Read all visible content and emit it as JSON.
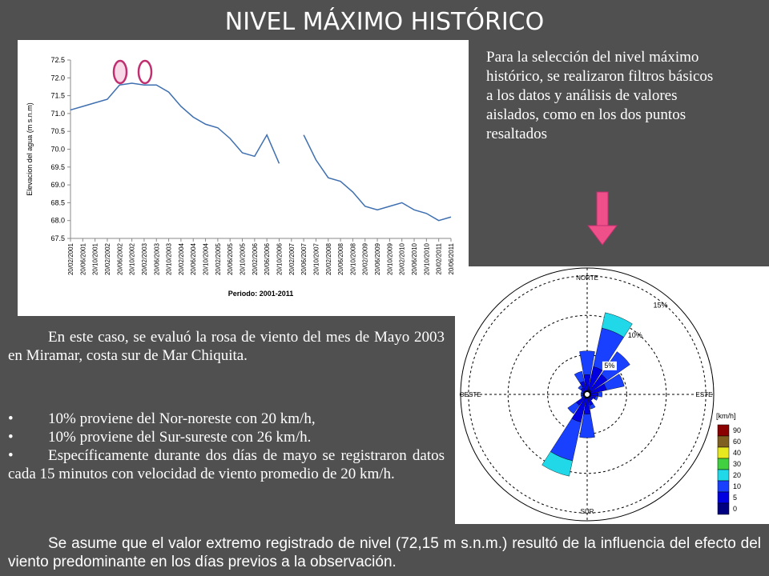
{
  "title": "NIVEL MÁXIMO HISTÓRICO",
  "note": "Para la selección del nivel máximo histórico, se realizaron filtros básicos a los datos y análisis de valores aislados, como en los dos puntos resaltados",
  "paragraph": "En este caso, se evaluó la rosa de viento del mes de Mayo 2003 en Miramar, costa sur de Mar Chiquita.",
  "bullets": [
    "10% proviene del Nor-noreste con 20 km/h,",
    "10% proviene del Sur-sureste con 26 km/h.",
    "Específicamente durante dos días de mayo se registraron datos cada 15 minutos con velocidad de viento promedio de 20 km/h."
  ],
  "footer": "Se asume que el valor extremo registrado de nivel (72,15 m s.n.m.) resultó de la influencia del efecto del viento predominante en los días previos a la observación.",
  "chart_data": [
    {
      "type": "line",
      "x_label": "Periodo: 2001-2011",
      "y_label": "Elevacion del agua (m s.n.m)",
      "categories": [
        "20/02/2001",
        "20/06/2001",
        "20/10/2001",
        "20/02/2002",
        "20/06/2002",
        "20/10/2002",
        "20/02/2003",
        "20/06/2003",
        "20/10/2003",
        "20/02/2004",
        "20/06/2004",
        "20/10/2004",
        "20/02/2005",
        "20/06/2005",
        "20/10/2005",
        "20/02/2006",
        "20/06/2006",
        "20/10/2006",
        "20/02/2007",
        "20/06/2007",
        "20/10/2007",
        "20/02/2008",
        "20/06/2008",
        "20/10/2008",
        "20/02/2009",
        "20/06/2009",
        "20/10/2009",
        "20/02/2010",
        "20/06/2010",
        "20/10/2010",
        "20/02/2011",
        "20/06/2011"
      ],
      "series": [
        {
          "color": "#3e6fb0",
          "values": [
            71.1,
            71.2,
            71.3,
            71.4,
            71.8,
            71.85,
            71.8,
            71.8,
            71.6,
            71.2,
            70.9,
            70.7,
            70.6,
            70.3,
            69.9,
            69.8,
            70.4,
            69.6,
            null,
            70.4,
            69.7,
            69.2,
            69.1,
            68.8,
            68.4,
            68.3,
            68.4,
            68.5,
            68.3,
            68.2,
            68.0,
            68.1
          ]
        }
      ],
      "ylim": [
        67.5,
        72.5
      ],
      "yticks": [
        67.5,
        {
          "value": 68,
          "label": "68.0"
        },
        68.5,
        {
          "value": 69,
          "label": "69.0"
        },
        69.5,
        {
          "value": 70,
          "label": "70.0"
        },
        70.5,
        {
          "value": 71,
          "label": "71.0"
        },
        71.5,
        {
          "value": 72,
          "label": "72.0"
        },
        72.5
      ],
      "grid": false
    },
    {
      "type": "windrose",
      "categories": [
        "NORTE",
        null,
        null,
        null,
        "ESTE",
        null,
        null,
        null,
        "SUR",
        null,
        null,
        null,
        "OESTE",
        null,
        null,
        null
      ],
      "series": [
        {
          "color": "#000080",
          "values": [
            0.5,
            0.6,
            0.6,
            0.5,
            0.4,
            0.4,
            0.4,
            0.4,
            0.5,
            0.6,
            0.5,
            0.3,
            0.3,
            0.3,
            0.4,
            0.5
          ]
        },
        {
          "color": "#0000e0",
          "values": [
            2,
            3,
            2.5,
            2,
            1,
            0.7,
            0.5,
            1,
            2,
            3,
            1.2,
            0.3,
            0.3,
            0.3,
            0.6,
            1.2
          ]
        },
        {
          "color": "#1a40ff",
          "values": [
            3,
            5,
            3.5,
            2.3,
            0.5,
            0.3,
            0,
            0.5,
            3,
            5,
            1.3,
            0.2,
            0.2,
            0.2,
            0.4,
            1.3
          ]
        },
        {
          "color": "#20d8e8",
          "values": [
            0,
            2,
            0,
            0,
            0,
            0,
            0,
            0,
            0,
            2,
            0,
            0,
            0,
            0,
            0,
            0
          ]
        }
      ],
      "rlim": [
        0,
        16
      ],
      "rticks": [
        {
          "value": 5,
          "label": "5%"
        },
        {
          "value": 10,
          "label": "10%"
        },
        {
          "value": 15,
          "label": "15%"
        }
      ],
      "colorbar": {
        "title": "[km/h]",
        "ticks": [
          0,
          5,
          10,
          20,
          30,
          40,
          60,
          90
        ],
        "colors": [
          "#000080",
          "#0000e0",
          "#1a40ff",
          "#20d8e8",
          "#40d040",
          "#e8e820",
          "#806020",
          "#8b0000"
        ]
      }
    }
  ]
}
